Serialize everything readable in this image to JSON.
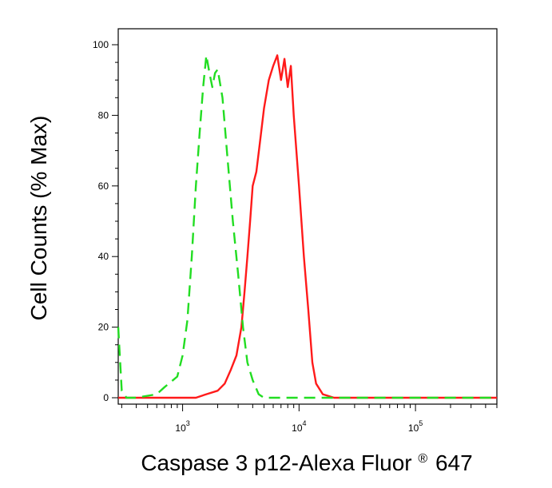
{
  "chart_data": {
    "type": "line",
    "xlabel": "Caspase 3 p12-Alexa Fluor",
    "xlabel_superscript": "®",
    "xlabel_suffix": "647",
    "ylabel": "Cell Counts (% Max)",
    "x_scale": "log",
    "xlim": [
      280,
      500000
    ],
    "ylim": [
      0,
      100
    ],
    "grid": false,
    "y_ticks": [
      0,
      20,
      40,
      60,
      80,
      100
    ],
    "y_tick_labels": [
      "0",
      "20",
      "40",
      "60",
      "80",
      "100"
    ],
    "x_ticks": [
      1000,
      10000,
      100000
    ],
    "x_tick_labels": [
      {
        "base": "10",
        "exp": "3"
      },
      {
        "base": "10",
        "exp": "4"
      },
      {
        "base": "10",
        "exp": "5"
      }
    ],
    "series": [
      {
        "color": "#ff1a1a",
        "style": "solid",
        "x": [
          280,
          500,
          900,
          1300,
          1600,
          2000,
          2300,
          2600,
          2900,
          3200,
          3400,
          3600,
          3800,
          4000,
          4300,
          4600,
          5000,
          5500,
          6000,
          6500,
          7000,
          7500,
          8000,
          8500,
          9000,
          10000,
          11000,
          12000,
          13000,
          14000,
          16000,
          20000,
          50000,
          100000,
          500000
        ],
        "y": [
          0,
          0,
          0,
          0,
          1,
          2,
          4,
          8,
          12,
          20,
          30,
          40,
          50,
          60,
          64,
          72,
          82,
          90,
          94,
          97,
          90,
          96,
          88,
          94,
          80,
          60,
          40,
          25,
          10,
          4,
          1,
          0,
          0,
          0,
          0
        ]
      },
      {
        "color": "#22dd22",
        "style": "dashed",
        "x": [
          280,
          300,
          330,
          400,
          600,
          700,
          900,
          1000,
          1100,
          1200,
          1300,
          1400,
          1500,
          1600,
          1700,
          1800,
          1900,
          2000,
          2200,
          2400,
          2700,
          3000,
          3300,
          3600,
          4000,
          4500,
          5000,
          6000,
          8000,
          10000,
          20000,
          100000,
          500000
        ],
        "y": [
          20,
          2,
          0,
          0,
          1,
          3,
          6,
          12,
          22,
          40,
          60,
          75,
          88,
          97,
          92,
          88,
          92,
          93,
          85,
          70,
          50,
          35,
          20,
          10,
          5,
          1,
          0,
          0,
          0,
          0,
          0,
          0,
          0
        ]
      }
    ]
  }
}
